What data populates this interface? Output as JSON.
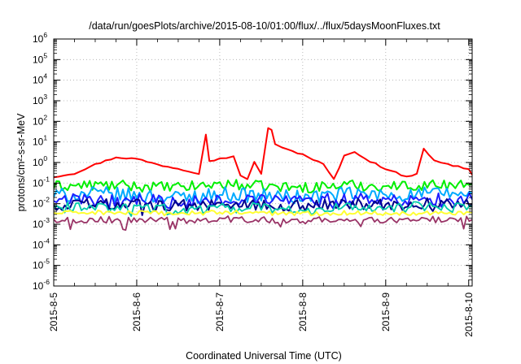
{
  "chart_data": {
    "type": "line",
    "title": "/data/run/goesPlots/archive/2015-08-10/01:00/flux/../flux/5daysMoonFluxes.txt",
    "xlabel": "Coordinated Universal Time (UTC)",
    "ylabel": "protons/cm²-s-sr-MeV",
    "y_scale": "log",
    "ylim": [
      1e-06,
      1000000.0
    ],
    "xlim": [
      "2015-08-05",
      "2015-08-10 01:00"
    ],
    "x_ticks": [
      "2015-8-5",
      "2015-8-6",
      "2015-8-7",
      "2015-8-8",
      "2015-8-9",
      "2015-8-10"
    ],
    "y_ticks": [
      {
        "base": "10",
        "exp": "-6"
      },
      {
        "base": "10",
        "exp": "-5"
      },
      {
        "base": "10",
        "exp": "-4"
      },
      {
        "base": "10",
        "exp": "-3"
      },
      {
        "base": "10",
        "exp": "-2"
      },
      {
        "base": "10",
        "exp": "-1"
      },
      {
        "base": "10",
        "exp": "0"
      },
      {
        "base": "10",
        "exp": "1"
      },
      {
        "base": "10",
        "exp": "2"
      },
      {
        "base": "10",
        "exp": "3"
      },
      {
        "base": "10",
        "exp": "4"
      },
      {
        "base": "10",
        "exp": "5"
      },
      {
        "base": "10",
        "exp": "6"
      }
    ],
    "grid": true,
    "legend": "none",
    "series": [
      {
        "color": "#ff0000",
        "x": [
          "2015-08-05 00:00",
          "2015-08-05 06:00",
          "2015-08-05 12:00",
          "2015-08-05 18:00",
          "2015-08-06 00:00",
          "2015-08-06 06:00",
          "2015-08-06 12:00",
          "2015-08-06 18:00",
          "2015-08-06 20:00",
          "2015-08-06 21:00",
          "2015-08-07 00:00",
          "2015-08-07 04:00",
          "2015-08-07 06:00",
          "2015-08-07 08:00",
          "2015-08-07 10:00",
          "2015-08-07 12:00",
          "2015-08-07 14:00",
          "2015-08-07 15:00",
          "2015-08-07 16:00",
          "2015-08-07 18:00",
          "2015-08-08 00:00",
          "2015-08-08 06:00",
          "2015-08-08 09:00",
          "2015-08-08 12:00",
          "2015-08-08 15:00",
          "2015-08-08 18:00",
          "2015-08-09 00:00",
          "2015-08-09 06:00",
          "2015-08-09 09:00",
          "2015-08-09 11:00",
          "2015-08-09 14:00",
          "2015-08-09 18:00",
          "2015-08-10 00:00",
          "2015-08-10 01:00"
        ],
        "y": [
          0.2,
          0.3,
          0.8,
          1.8,
          1.5,
          0.8,
          0.5,
          0.3,
          25,
          1.2,
          1.5,
          2.0,
          0.25,
          0.15,
          1.0,
          0.3,
          45,
          40,
          8,
          5,
          2.5,
          0.8,
          0.15,
          2.0,
          3.5,
          1.5,
          0.5,
          0.2,
          0.3,
          5.0,
          1.2,
          0.8,
          0.5,
          0.25
        ]
      },
      {
        "color": "#00ee00",
        "x": [
          "2015-08-05 00:00",
          "2015-08-05 12:00",
          "2015-08-06 00:00",
          "2015-08-06 12:00",
          "2015-08-07 00:00",
          "2015-08-07 12:00",
          "2015-08-08 00:00",
          "2015-08-08 12:00",
          "2015-08-09 00:00",
          "2015-08-09 12:00",
          "2015-08-10 01:00"
        ],
        "y": [
          0.07,
          0.08,
          0.07,
          0.06,
          0.09,
          0.07,
          0.06,
          0.08,
          0.07,
          0.08,
          0.09
        ]
      },
      {
        "color": "#00aaff",
        "x": [
          "2015-08-05 00:00",
          "2015-08-05 12:00",
          "2015-08-06 00:00",
          "2015-08-06 12:00",
          "2015-08-07 00:00",
          "2015-08-07 12:00",
          "2015-08-08 00:00",
          "2015-08-08 12:00",
          "2015-08-09 00:00",
          "2015-08-09 12:00",
          "2015-08-10 01:00"
        ],
        "y": [
          0.025,
          0.03,
          0.025,
          0.02,
          0.03,
          0.025,
          0.02,
          0.03,
          0.025,
          0.03,
          0.03
        ]
      },
      {
        "color": "#1e1eff",
        "x": [
          "2015-08-05 00:00",
          "2015-08-05 12:00",
          "2015-08-06 00:00",
          "2015-08-06 12:00",
          "2015-08-07 00:00",
          "2015-08-07 12:00",
          "2015-08-08 00:00",
          "2015-08-08 12:00",
          "2015-08-09 00:00",
          "2015-08-09 12:00",
          "2015-08-10 01:00"
        ],
        "y": [
          0.015,
          0.018,
          0.015,
          0.012,
          0.018,
          0.015,
          0.013,
          0.016,
          0.014,
          0.017,
          0.016
        ]
      },
      {
        "color": "#00008b",
        "x": [
          "2015-08-05 00:00",
          "2015-08-05 12:00",
          "2015-08-06 00:00",
          "2015-08-06 12:00",
          "2015-08-07 00:00",
          "2015-08-07 12:00",
          "2015-08-08 00:00",
          "2015-08-08 12:00",
          "2015-08-09 00:00",
          "2015-08-09 12:00",
          "2015-08-10 01:00"
        ],
        "y": [
          0.009,
          0.01,
          0.009,
          0.008,
          0.01,
          0.009,
          0.008,
          0.01,
          0.009,
          0.01,
          0.01
        ]
      },
      {
        "color": "#00ccaa",
        "x": [
          "2015-08-05 00:00",
          "2015-08-05 12:00",
          "2015-08-06 00:00",
          "2015-08-06 12:00",
          "2015-08-07 00:00",
          "2015-08-07 12:00",
          "2015-08-08 00:00",
          "2015-08-08 12:00",
          "2015-08-09 00:00",
          "2015-08-09 12:00",
          "2015-08-10 01:00"
        ],
        "y": [
          0.006,
          0.007,
          0.006,
          0.005,
          0.007,
          0.006,
          0.005,
          0.007,
          0.006,
          0.007,
          0.007
        ]
      },
      {
        "color": "#ffff33",
        "x": [
          "2015-08-05 00:00",
          "2015-08-05 12:00",
          "2015-08-06 00:00",
          "2015-08-06 12:00",
          "2015-08-07 00:00",
          "2015-08-07 12:00",
          "2015-08-08 00:00",
          "2015-08-08 12:00",
          "2015-08-09 00:00",
          "2015-08-09 12:00",
          "2015-08-10 01:00"
        ],
        "y": [
          0.0035,
          0.0038,
          0.0035,
          0.0033,
          0.0038,
          0.0035,
          0.0033,
          0.0036,
          0.0034,
          0.0036,
          0.0037
        ]
      },
      {
        "color": "#993366",
        "x": [
          "2015-08-05 00:00",
          "2015-08-05 12:00",
          "2015-08-06 00:00",
          "2015-08-06 12:00",
          "2015-08-07 00:00",
          "2015-08-07 12:00",
          "2015-08-08 00:00",
          "2015-08-08 12:00",
          "2015-08-09 00:00",
          "2015-08-09 12:00",
          "2015-08-10 01:00"
        ],
        "y": [
          0.0016,
          0.0017,
          0.0016,
          0.0015,
          0.0018,
          0.0016,
          0.0015,
          0.0017,
          0.0016,
          0.0017,
          0.0017
        ]
      }
    ]
  }
}
